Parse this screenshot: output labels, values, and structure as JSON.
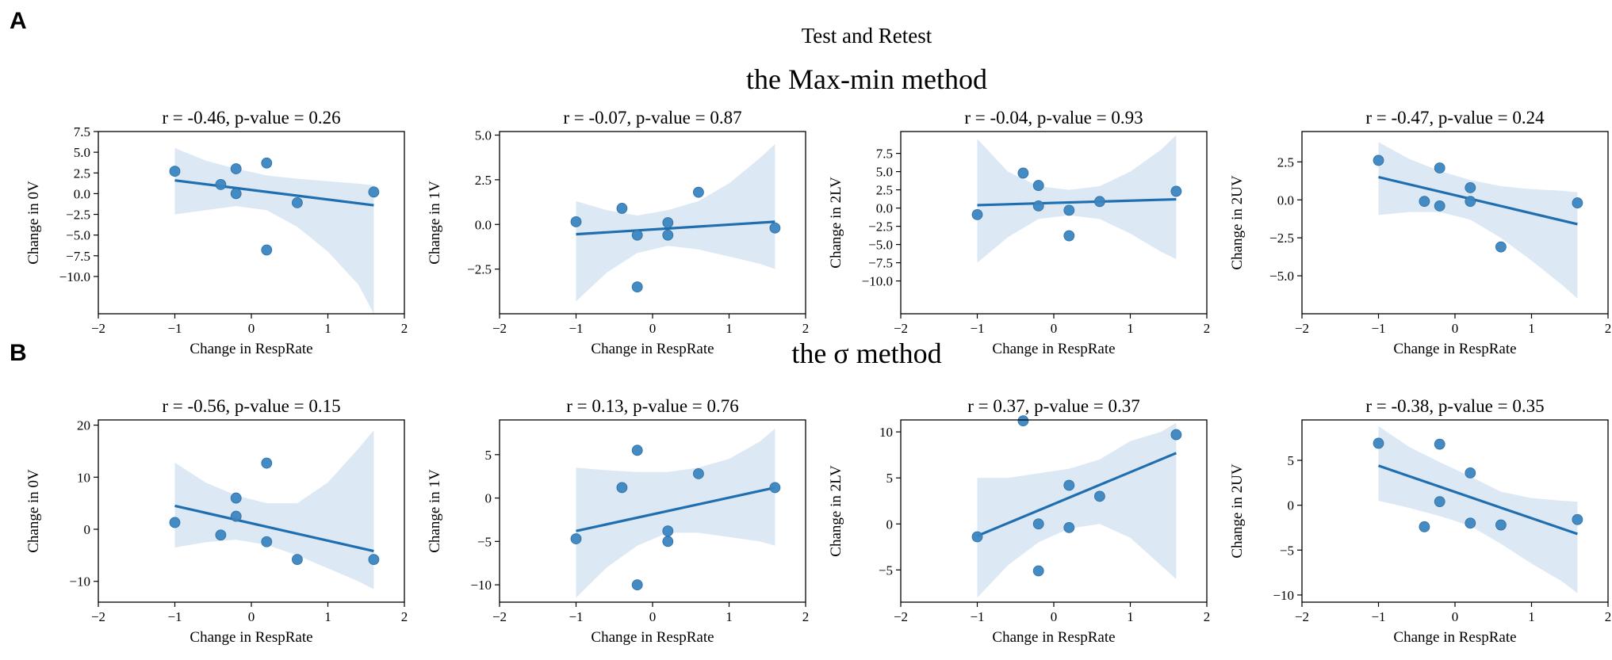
{
  "figure": {
    "supertitle": "Test and Retest",
    "sections": [
      {
        "letter": "A",
        "title": "the Max-min method"
      },
      {
        "letter": "B",
        "title": "the σ method"
      }
    ]
  },
  "colors": {
    "point": "#3b85c0",
    "line": "#1f6fb0",
    "band": "#dce8f4",
    "point_edge": "#2e6fa5"
  },
  "chart_data": [
    {
      "type": "scatter",
      "section": "A",
      "title": "r = -0.46, p-value = 0.26",
      "xlabel": "Change in RespRate",
      "ylabel": "Change in 0V",
      "xlim": [
        -2,
        2
      ],
      "ylim": [
        -14.5,
        7.5
      ],
      "xticks": [
        -2,
        -1,
        0,
        1,
        2
      ],
      "yticks": [
        7.5,
        5.0,
        2.5,
        0.0,
        -2.5,
        -5.0,
        -7.5,
        -10.0
      ],
      "points": [
        [
          -1.0,
          2.7
        ],
        [
          -0.4,
          1.1
        ],
        [
          -0.2,
          3.0
        ],
        [
          -0.2,
          0.0
        ],
        [
          0.2,
          3.7
        ],
        [
          0.2,
          -6.8
        ],
        [
          0.6,
          -1.1
        ],
        [
          1.6,
          0.2
        ]
      ],
      "fit": [
        [
          -1.0,
          1.6
        ],
        [
          1.6,
          -1.4
        ]
      ],
      "band": {
        "x": [
          -1.0,
          -0.6,
          -0.2,
          0.2,
          0.6,
          1.0,
          1.4,
          1.6
        ],
        "lower": [
          -2.5,
          -2.0,
          -1.5,
          -2.0,
          -4.0,
          -7.0,
          -11.0,
          -14.5
        ],
        "upper": [
          5.5,
          4.0,
          3.0,
          2.2,
          1.8,
          1.5,
          1.2,
          1.0
        ]
      }
    },
    {
      "type": "scatter",
      "section": "A",
      "title": "r = -0.07, p-value = 0.87",
      "xlabel": "Change in RespRate",
      "ylabel": "Change in 1V",
      "xlim": [
        -2,
        2
      ],
      "ylim": [
        -5.0,
        5.2
      ],
      "xticks": [
        -2,
        -1,
        0,
        1,
        2
      ],
      "yticks": [
        5.0,
        2.5,
        0.0,
        -2.5
      ],
      "points": [
        [
          -1.0,
          0.15
        ],
        [
          -0.4,
          0.9
        ],
        [
          -0.2,
          -0.6
        ],
        [
          -0.2,
          -3.5
        ],
        [
          0.2,
          0.1
        ],
        [
          0.2,
          -0.6
        ],
        [
          0.6,
          1.8
        ],
        [
          1.6,
          -0.2
        ]
      ],
      "fit": [
        [
          -1.0,
          -0.55
        ],
        [
          1.6,
          0.15
        ]
      ],
      "band": {
        "x": [
          -1.0,
          -0.6,
          -0.2,
          0.2,
          0.6,
          1.0,
          1.4,
          1.6
        ],
        "lower": [
          -4.3,
          -2.7,
          -1.6,
          -1.2,
          -1.4,
          -1.8,
          -2.2,
          -2.5
        ],
        "upper": [
          1.3,
          0.8,
          0.5,
          0.8,
          1.3,
          2.3,
          3.7,
          4.5
        ]
      }
    },
    {
      "type": "scatter",
      "section": "A",
      "title": "r = -0.04, p-value = 0.93",
      "xlabel": "Change in RespRate",
      "ylabel": "Change in 2LV",
      "xlim": [
        -2,
        2
      ],
      "ylim": [
        -14.5,
        10.5
      ],
      "xticks": [
        -2,
        -1,
        0,
        1,
        2
      ],
      "yticks": [
        7.5,
        5.0,
        2.5,
        0.0,
        -2.5,
        -5.0,
        -7.5,
        -10.0
      ],
      "points": [
        [
          -1.0,
          -0.9
        ],
        [
          -0.4,
          4.8
        ],
        [
          -0.2,
          3.1
        ],
        [
          -0.2,
          0.3
        ],
        [
          0.2,
          -0.3
        ],
        [
          0.2,
          -3.8
        ],
        [
          0.6,
          0.9
        ],
        [
          1.6,
          2.3
        ]
      ],
      "fit": [
        [
          -1.0,
          0.4
        ],
        [
          1.6,
          1.2
        ]
      ],
      "band": {
        "x": [
          -1.0,
          -0.6,
          -0.2,
          0.2,
          0.6,
          1.0,
          1.4,
          1.6
        ],
        "lower": [
          -7.5,
          -4.0,
          -1.5,
          -1.0,
          -1.5,
          -3.5,
          -6.0,
          -7.0
        ],
        "upper": [
          9.5,
          5.0,
          3.0,
          2.5,
          3.0,
          5.0,
          8.0,
          10.0
        ]
      }
    },
    {
      "type": "scatter",
      "section": "A",
      "title": "r = -0.47, p-value = 0.24",
      "xlabel": "Change in RespRate",
      "ylabel": "Change in 2UV",
      "xlim": [
        -2,
        2
      ],
      "ylim": [
        -7.5,
        4.5
      ],
      "xticks": [
        -2,
        -1,
        0,
        1,
        2
      ],
      "yticks": [
        2.5,
        0.0,
        -2.5,
        -5.0
      ],
      "points": [
        [
          -1.0,
          2.6
        ],
        [
          -0.4,
          -0.1
        ],
        [
          -0.2,
          2.1
        ],
        [
          -0.2,
          -0.4
        ],
        [
          0.2,
          0.8
        ],
        [
          0.2,
          -0.1
        ],
        [
          0.6,
          -3.1
        ],
        [
          1.6,
          -0.2
        ]
      ],
      "fit": [
        [
          -1.0,
          1.5
        ],
        [
          1.6,
          -1.6
        ]
      ],
      "band": {
        "x": [
          -1.0,
          -0.6,
          -0.2,
          0.2,
          0.6,
          1.0,
          1.4,
          1.6
        ],
        "lower": [
          -1.0,
          -0.8,
          -0.8,
          -1.3,
          -2.5,
          -4.0,
          -5.6,
          -6.5
        ],
        "upper": [
          3.8,
          2.7,
          1.9,
          1.3,
          0.9,
          0.7,
          0.6,
          0.5
        ]
      }
    },
    {
      "type": "scatter",
      "section": "B",
      "title": "r = -0.56, p-value = 0.15",
      "xlabel": "Change in RespRate",
      "ylabel": "Change in 0V",
      "xlim": [
        -2,
        2
      ],
      "ylim": [
        -14.0,
        21.0
      ],
      "xticks": [
        -2,
        -1,
        0,
        1,
        2
      ],
      "yticks": [
        20,
        10,
        0,
        -10
      ],
      "points": [
        [
          -1.0,
          1.3
        ],
        [
          -0.4,
          -1.1
        ],
        [
          -0.2,
          6.0
        ],
        [
          -0.2,
          2.5
        ],
        [
          0.2,
          12.7
        ],
        [
          0.2,
          -2.4
        ],
        [
          0.6,
          -5.8
        ],
        [
          1.6,
          -5.8
        ]
      ],
      "fit": [
        [
          -1.0,
          4.5
        ],
        [
          1.6,
          -4.2
        ]
      ],
      "band": {
        "x": [
          -1.0,
          -0.6,
          -0.2,
          0.2,
          0.6,
          1.0,
          1.4,
          1.6
        ],
        "lower": [
          -3.5,
          -2.5,
          -2.0,
          -3.0,
          -5.0,
          -7.5,
          -10.0,
          -11.5
        ],
        "upper": [
          12.8,
          9.0,
          6.5,
          5.0,
          5.0,
          9.0,
          15.5,
          19.0
        ]
      }
    },
    {
      "type": "scatter",
      "section": "B",
      "title": "r = 0.13, p-value = 0.76",
      "xlabel": "Change in RespRate",
      "ylabel": "Change in 1V",
      "xlim": [
        -2,
        2
      ],
      "ylim": [
        -12.0,
        9.0
      ],
      "xticks": [
        -2,
        -1,
        0,
        1,
        2
      ],
      "yticks": [
        5,
        0,
        -5,
        -10
      ],
      "points": [
        [
          -1.0,
          -4.7
        ],
        [
          -0.4,
          1.2
        ],
        [
          -0.2,
          5.5
        ],
        [
          -0.2,
          -10.0
        ],
        [
          0.2,
          -3.8
        ],
        [
          0.2,
          -5.0
        ],
        [
          0.6,
          2.8
        ],
        [
          1.6,
          1.2
        ]
      ],
      "fit": [
        [
          -1.0,
          -3.8
        ],
        [
          1.6,
          1.2
        ]
      ],
      "band": {
        "x": [
          -1.0,
          -0.6,
          -0.2,
          0.2,
          0.6,
          1.0,
          1.4,
          1.6
        ],
        "lower": [
          -11.5,
          -8.0,
          -5.5,
          -4.0,
          -4.0,
          -4.5,
          -5.0,
          -5.5
        ],
        "upper": [
          3.5,
          3.2,
          3.0,
          3.0,
          3.5,
          4.5,
          6.5,
          8.0
        ]
      }
    },
    {
      "type": "scatter",
      "section": "B",
      "title": "r = 0.37, p-value = 0.37",
      "xlabel": "Change in RespRate",
      "ylabel": "Change in 2LV",
      "xlim": [
        -2,
        2
      ],
      "ylim": [
        -8.5,
        11.3
      ],
      "xticks": [
        -2,
        -1,
        0,
        1,
        2
      ],
      "yticks": [
        10,
        5,
        0,
        -5
      ],
      "points": [
        [
          -1.0,
          -1.4
        ],
        [
          -0.4,
          11.2
        ],
        [
          -0.2,
          0.0
        ],
        [
          -0.2,
          -5.1
        ],
        [
          0.2,
          4.2
        ],
        [
          0.2,
          -0.4
        ],
        [
          0.6,
          3.0
        ],
        [
          1.6,
          9.7
        ]
      ],
      "fit": [
        [
          -1.0,
          -1.3
        ],
        [
          1.6,
          7.7
        ]
      ],
      "band": {
        "x": [
          -1.0,
          -0.6,
          -0.2,
          0.2,
          0.6,
          1.0,
          1.4,
          1.6
        ],
        "lower": [
          -8.0,
          -4.5,
          -2.0,
          -0.5,
          0.0,
          -1.5,
          -4.5,
          -6.0
        ],
        "upper": [
          5.0,
          5.0,
          5.5,
          6.0,
          7.0,
          9.0,
          10.0,
          11.0
        ]
      }
    },
    {
      "type": "scatter",
      "section": "B",
      "title": "r = -0.38, p-value = 0.35",
      "xlabel": "Change in RespRate",
      "ylabel": "Change in 2UV",
      "xlim": [
        -2,
        2
      ],
      "ylim": [
        -10.8,
        9.5
      ],
      "xticks": [
        -2,
        -1,
        0,
        1,
        2
      ],
      "yticks": [
        5,
        0,
        -5,
        -10
      ],
      "points": [
        [
          -1.0,
          6.9
        ],
        [
          -0.4,
          -2.4
        ],
        [
          -0.2,
          6.8
        ],
        [
          -0.2,
          0.4
        ],
        [
          0.2,
          3.6
        ],
        [
          0.2,
          -2.0
        ],
        [
          0.6,
          -2.2
        ],
        [
          1.6,
          -1.6
        ]
      ],
      "fit": [
        [
          -1.0,
          4.4
        ],
        [
          1.6,
          -3.2
        ]
      ],
      "band": {
        "x": [
          -1.0,
          -0.6,
          -0.2,
          0.2,
          0.6,
          1.0,
          1.4,
          1.6
        ],
        "lower": [
          0.5,
          -0.3,
          -1.2,
          -2.3,
          -4.3,
          -6.5,
          -8.5,
          -9.8
        ],
        "upper": [
          8.8,
          6.5,
          4.8,
          3.2,
          1.5,
          0.8,
          0.5,
          0.4
        ]
      }
    }
  ]
}
